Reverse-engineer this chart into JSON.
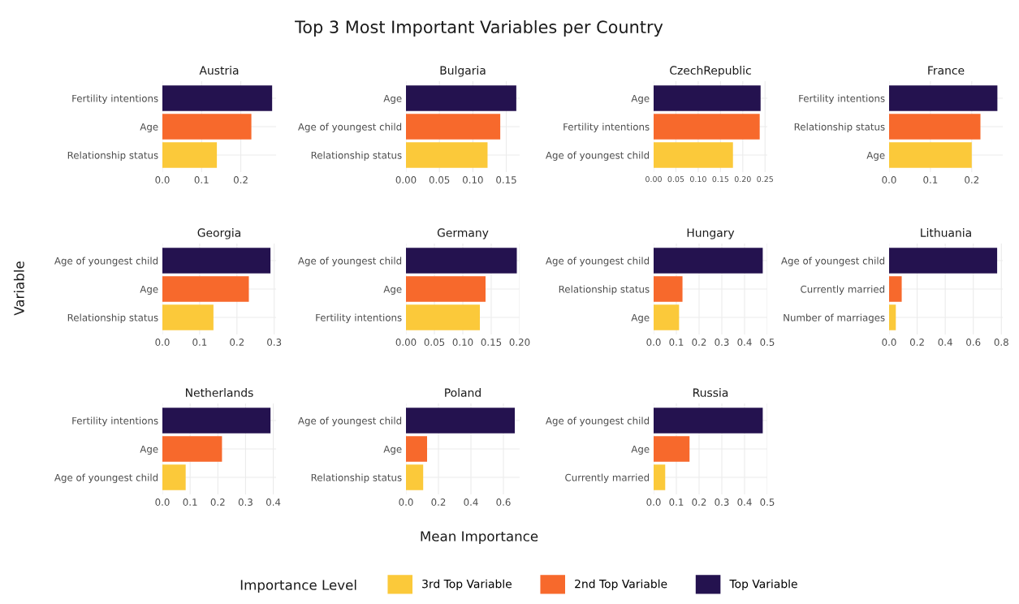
{
  "chart_data": [
    {
      "type": "bar",
      "orientation": "horizontal",
      "title": "Austria",
      "categories": [
        "Fertility intentions",
        "Age",
        "Relationship status"
      ],
      "series": [
        {
          "name": "3rd Top Variable",
          "color": "#fbc93a",
          "values": [
            null,
            null,
            0.139
          ]
        },
        {
          "name": "2nd Top Variable",
          "color": "#f7692c",
          "values": [
            null,
            0.227,
            null
          ]
        },
        {
          "name": "Top Variable",
          "color": "#24124f",
          "values": [
            0.28,
            null,
            null
          ]
        }
      ],
      "xlim": [
        0,
        0.29
      ],
      "xticks": [
        {
          "value": 0,
          "label": "0.0"
        },
        {
          "value": 0.1,
          "label": "0.1"
        },
        {
          "value": 0.2,
          "label": "0.2"
        }
      ],
      "grid": true,
      "legend": "bottom",
      "legend_title": "Importance Level"
    },
    {
      "type": "bar",
      "orientation": "horizontal",
      "title": "Bulgaria",
      "categories": [
        "Age",
        "Age of youngest child",
        "Relationship status"
      ],
      "series": [
        {
          "color": "#fbc93a",
          "values": [
            null,
            null,
            0.122
          ]
        },
        {
          "color": "#f7692c",
          "values": [
            null,
            0.141,
            null
          ]
        },
        {
          "color": "#24124f",
          "values": [
            0.165,
            null,
            null
          ]
        }
      ],
      "xlim": [
        0,
        0.17
      ],
      "xticks": [
        {
          "value": 0,
          "label": "0.00"
        },
        {
          "value": 0.05,
          "label": "0.05"
        },
        {
          "value": 0.1,
          "label": "0.10"
        },
        {
          "value": 0.15,
          "label": "0.15"
        }
      ],
      "grid": true
    },
    {
      "type": "bar",
      "orientation": "horizontal",
      "title": "CzechRepublic",
      "categories": [
        "Age",
        "Fertility intentions",
        "Age of youngest child"
      ],
      "series": [
        {
          "color": "#fbc93a",
          "values": [
            null,
            null,
            0.178
          ]
        },
        {
          "color": "#f7692c",
          "values": [
            null,
            0.238,
            null
          ]
        },
        {
          "color": "#24124f",
          "values": [
            0.24,
            null,
            null
          ]
        }
      ],
      "xlim": [
        0,
        0.255
      ],
      "xticks": [
        {
          "value": 0,
          "label": "0.00"
        },
        {
          "value": 0.05,
          "label": "0.05"
        },
        {
          "value": 0.1,
          "label": "0.10"
        },
        {
          "value": 0.15,
          "label": "0.15"
        },
        {
          "value": 0.2,
          "label": "0.20"
        },
        {
          "value": 0.25,
          "label": "0.25"
        }
      ],
      "grid": true
    },
    {
      "type": "bar",
      "orientation": "horizontal",
      "title": "France",
      "categories": [
        "Fertility intentions",
        "Relationship status",
        "Age"
      ],
      "series": [
        {
          "color": "#fbc93a",
          "values": [
            null,
            null,
            0.2
          ]
        },
        {
          "color": "#f7692c",
          "values": [
            null,
            0.221,
            null
          ]
        },
        {
          "color": "#24124f",
          "values": [
            0.262,
            null,
            null
          ]
        }
      ],
      "xlim": [
        0,
        0.275
      ],
      "xticks": [
        {
          "value": 0,
          "label": "0.0"
        },
        {
          "value": 0.1,
          "label": "0.1"
        },
        {
          "value": 0.2,
          "label": "0.2"
        }
      ],
      "grid": true
    },
    {
      "type": "bar",
      "orientation": "horizontal",
      "title": "Georgia",
      "categories": [
        "Age of youngest child",
        "Age",
        "Relationship status"
      ],
      "series": [
        {
          "color": "#fbc93a",
          "values": [
            null,
            null,
            0.137
          ]
        },
        {
          "color": "#f7692c",
          "values": [
            null,
            0.232,
            null
          ]
        },
        {
          "color": "#24124f",
          "values": [
            0.29,
            null,
            null
          ]
        }
      ],
      "xlim": [
        0,
        0.305
      ],
      "xticks": [
        {
          "value": 0,
          "label": "0.0"
        },
        {
          "value": 0.1,
          "label": "0.1"
        },
        {
          "value": 0.2,
          "label": "0.2"
        },
        {
          "value": 0.3,
          "label": "0.3"
        }
      ],
      "grid": true
    },
    {
      "type": "bar",
      "orientation": "horizontal",
      "title": "Germany",
      "categories": [
        "Age of youngest child",
        "Age",
        "Fertility intentions"
      ],
      "series": [
        {
          "color": "#fbc93a",
          "values": [
            null,
            null,
            0.13
          ]
        },
        {
          "color": "#f7692c",
          "values": [
            null,
            0.14,
            null
          ]
        },
        {
          "color": "#24124f",
          "values": [
            0.195,
            null,
            null
          ]
        }
      ],
      "xlim": [
        0,
        0.2
      ],
      "xticks": [
        {
          "value": 0,
          "label": "0.00"
        },
        {
          "value": 0.05,
          "label": "0.05"
        },
        {
          "value": 0.1,
          "label": "0.10"
        },
        {
          "value": 0.15,
          "label": "0.15"
        },
        {
          "value": 0.2,
          "label": "0.20"
        }
      ],
      "grid": true
    },
    {
      "type": "bar",
      "orientation": "horizontal",
      "title": "Hungary",
      "categories": [
        "Age of youngest child",
        "Relationship status",
        "Age"
      ],
      "series": [
        {
          "color": "#fbc93a",
          "values": [
            null,
            null,
            0.112
          ]
        },
        {
          "color": "#f7692c",
          "values": [
            null,
            0.127,
            null
          ]
        },
        {
          "color": "#24124f",
          "values": [
            0.48,
            null,
            null
          ]
        }
      ],
      "xlim": [
        0,
        0.5
      ],
      "xticks": [
        {
          "value": 0,
          "label": "0.0"
        },
        {
          "value": 0.1,
          "label": "0.1"
        },
        {
          "value": 0.2,
          "label": "0.2"
        },
        {
          "value": 0.3,
          "label": "0.3"
        },
        {
          "value": 0.4,
          "label": "0.4"
        },
        {
          "value": 0.5,
          "label": "0.5"
        }
      ],
      "grid": true
    },
    {
      "type": "bar",
      "orientation": "horizontal",
      "title": "Lithuania",
      "categories": [
        "Age of youngest child",
        "Currently married",
        "Number of marriages"
      ],
      "series": [
        {
          "color": "#fbc93a",
          "values": [
            null,
            null,
            0.048
          ]
        },
        {
          "color": "#f7692c",
          "values": [
            null,
            0.09,
            null
          ]
        },
        {
          "color": "#24124f",
          "values": [
            0.77,
            null,
            null
          ]
        }
      ],
      "xlim": [
        0,
        0.81
      ],
      "xticks": [
        {
          "value": 0,
          "label": "0.0"
        },
        {
          "value": 0.2,
          "label": "0.2"
        },
        {
          "value": 0.4,
          "label": "0.4"
        },
        {
          "value": 0.6,
          "label": "0.6"
        },
        {
          "value": 0.8,
          "label": "0.8"
        }
      ],
      "grid": true
    },
    {
      "type": "bar",
      "orientation": "horizontal",
      "title": "Netherlands",
      "categories": [
        "Fertility intentions",
        "Age",
        "Age of youngest child"
      ],
      "series": [
        {
          "color": "#fbc93a",
          "values": [
            null,
            null,
            0.084
          ]
        },
        {
          "color": "#f7692c",
          "values": [
            null,
            0.215,
            null
          ]
        },
        {
          "color": "#24124f",
          "values": [
            0.39,
            null,
            null
          ]
        }
      ],
      "xlim": [
        0,
        0.41
      ],
      "xticks": [
        {
          "value": 0,
          "label": "0.0"
        },
        {
          "value": 0.1,
          "label": "0.1"
        },
        {
          "value": 0.2,
          "label": "0.2"
        },
        {
          "value": 0.3,
          "label": "0.3"
        },
        {
          "value": 0.4,
          "label": "0.4"
        }
      ],
      "grid": true
    },
    {
      "type": "bar",
      "orientation": "horizontal",
      "title": "Poland",
      "categories": [
        "Age of youngest child",
        "Age",
        "Relationship status"
      ],
      "series": [
        {
          "color": "#fbc93a",
          "values": [
            null,
            null,
            0.106
          ]
        },
        {
          "color": "#f7692c",
          "values": [
            null,
            0.13,
            null
          ]
        },
        {
          "color": "#24124f",
          "values": [
            0.67,
            null,
            null
          ]
        }
      ],
      "xlim": [
        0,
        0.7
      ],
      "xticks": [
        {
          "value": 0,
          "label": "0.0"
        },
        {
          "value": 0.2,
          "label": "0.2"
        },
        {
          "value": 0.4,
          "label": "0.4"
        },
        {
          "value": 0.6,
          "label": "0.6"
        }
      ],
      "grid": true
    },
    {
      "type": "bar",
      "orientation": "horizontal",
      "title": "Russia",
      "categories": [
        "Age of youngest child",
        "Age",
        "Currently married"
      ],
      "series": [
        {
          "color": "#fbc93a",
          "values": [
            null,
            null,
            0.051
          ]
        },
        {
          "color": "#f7692c",
          "values": [
            null,
            0.158,
            null
          ]
        },
        {
          "color": "#24124f",
          "values": [
            0.48,
            null,
            null
          ]
        }
      ],
      "xlim": [
        0,
        0.5
      ],
      "xticks": [
        {
          "value": 0,
          "label": "0.0"
        },
        {
          "value": 0.1,
          "label": "0.1"
        },
        {
          "value": 0.2,
          "label": "0.2"
        },
        {
          "value": 0.3,
          "label": "0.3"
        },
        {
          "value": 0.4,
          "label": "0.4"
        },
        {
          "value": 0.5,
          "label": "0.5"
        }
      ],
      "grid": true
    },
    {
      "type": "other",
      "title": "Top 3 Most Important Variables per Country",
      "xlabel": "Mean Importance",
      "ylabel": "Variable"
    }
  ]
}
